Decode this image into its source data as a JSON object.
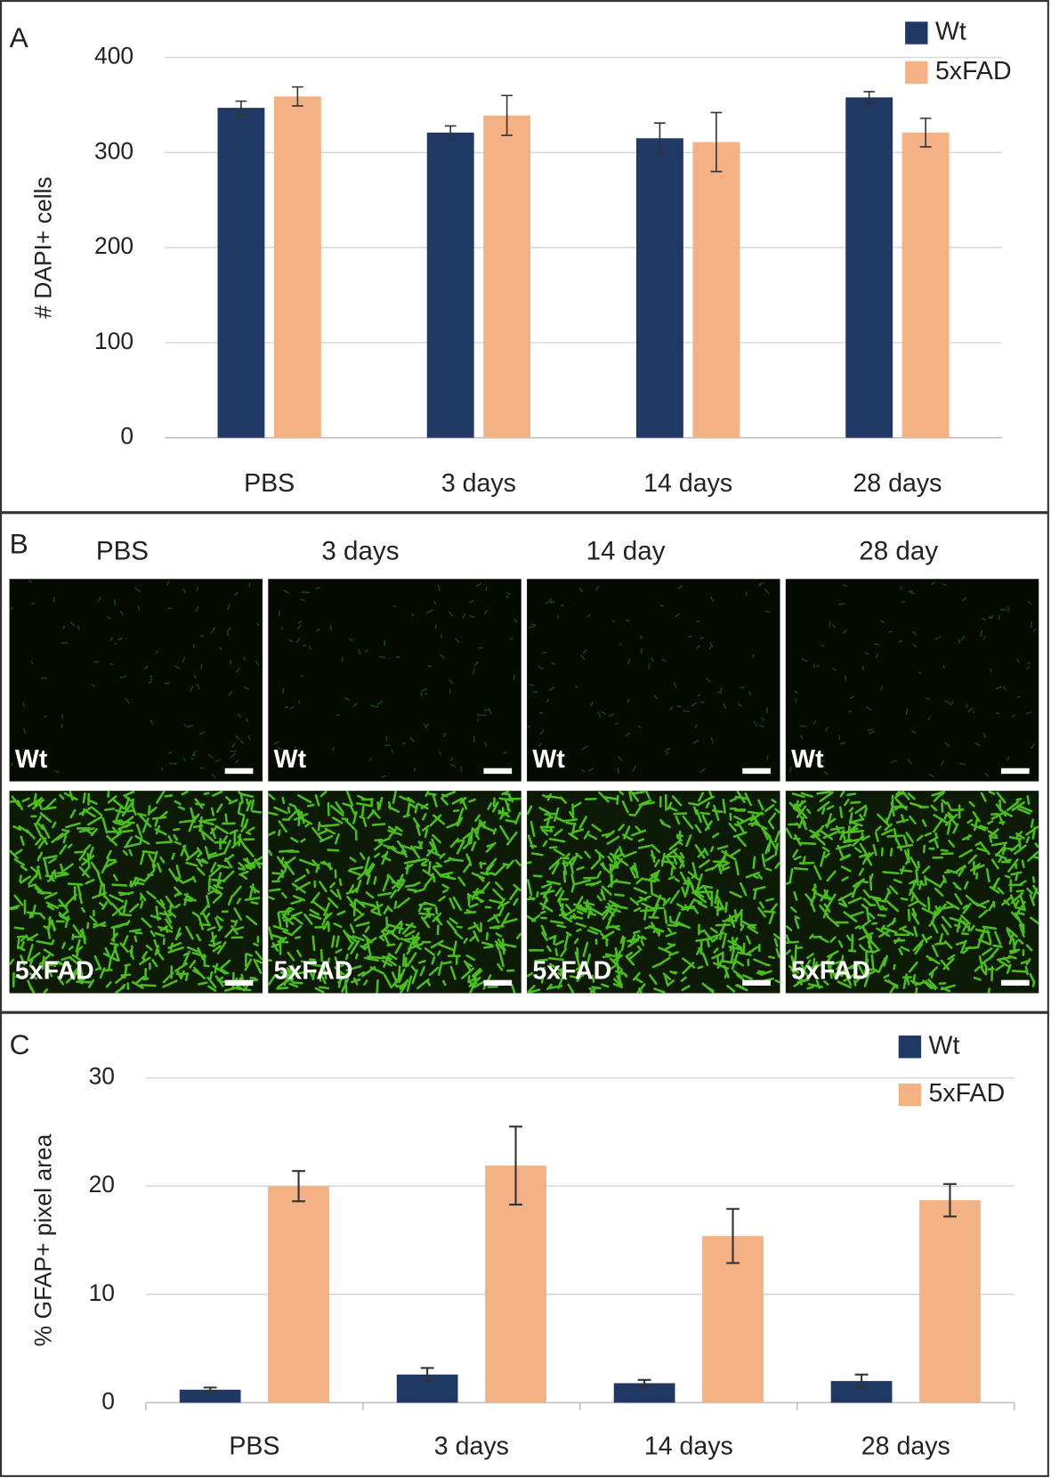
{
  "chart_data": [
    {
      "type": "bar",
      "label": "A",
      "ylabel": "# DAPI+ cells",
      "categories": [
        "PBS",
        "3 days",
        "14 days",
        "28 days"
      ],
      "series": [
        {
          "name": "Wt",
          "color": "#1f3864",
          "values": [
            347,
            321,
            315,
            358
          ],
          "errors": [
            7,
            7,
            16,
            6
          ]
        },
        {
          "name": "5xFAD",
          "color": "#f4b183",
          "values": [
            359,
            339,
            311,
            321
          ],
          "errors": [
            10,
            21,
            31,
            15
          ]
        }
      ],
      "ylim": [
        0,
        400
      ],
      "yticks": [
        0,
        100,
        200,
        300,
        400
      ],
      "grid": true,
      "legend": "top-right"
    },
    {
      "type": "bar",
      "label": "C",
      "ylabel": "% GFAP+ pixel area",
      "categories": [
        "PBS",
        "3 days",
        "14 days",
        "28 days"
      ],
      "series": [
        {
          "name": "Wt",
          "color": "#1f3864",
          "values": [
            1.2,
            2.6,
            1.8,
            2.0
          ],
          "errors": [
            0.2,
            0.6,
            0.3,
            0.6
          ]
        },
        {
          "name": "5xFAD",
          "color": "#f4b183",
          "values": [
            20.0,
            21.9,
            15.4,
            18.7
          ],
          "errors": [
            1.4,
            3.6,
            2.5,
            1.5
          ]
        }
      ],
      "ylim": [
        0,
        30
      ],
      "yticks": [
        0,
        10,
        20,
        30
      ],
      "grid": true,
      "legend": "top-right"
    }
  ],
  "panel_b": {
    "label": "B",
    "columns": [
      "PBS",
      "3 days",
      "14 day",
      "28 day"
    ],
    "rows": [
      "Wt",
      "5xFAD"
    ]
  }
}
